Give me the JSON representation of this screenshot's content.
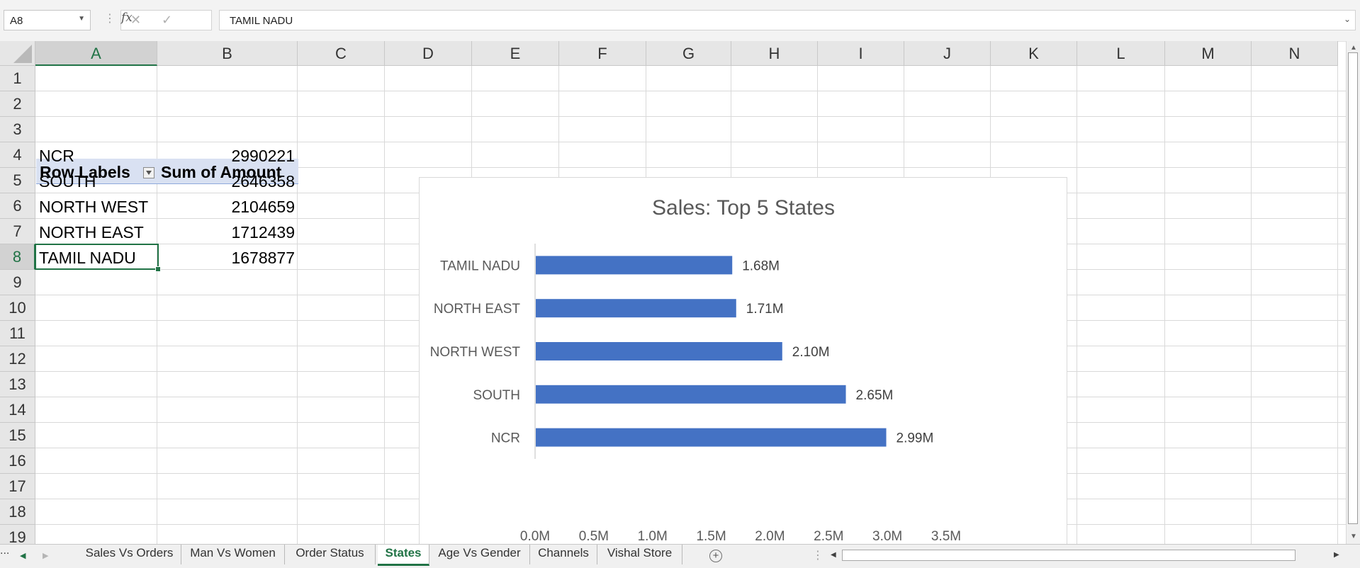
{
  "formula_bar": {
    "name_box": "A8",
    "cancel_icon": "close-icon",
    "enter_icon": "check-icon",
    "fx_label": "fx",
    "formula": "TAMIL NADU"
  },
  "grid": {
    "columns": [
      "A",
      "B",
      "C",
      "D",
      "E",
      "F",
      "G",
      "H",
      "I",
      "J",
      "K",
      "L",
      "M",
      "N"
    ],
    "selected_column": "A",
    "rows": [
      "1",
      "2",
      "3",
      "4",
      "5",
      "6",
      "7",
      "8",
      "9",
      "10",
      "11",
      "12",
      "13",
      "14",
      "15",
      "16",
      "17",
      "18",
      "19"
    ],
    "selected_row": "8"
  },
  "pivot": {
    "header_label": "Row Labels",
    "header_value": "Sum of Amount",
    "rows": [
      {
        "label": "NCR",
        "value": "2990221"
      },
      {
        "label": "SOUTH",
        "value": "2646358"
      },
      {
        "label": "NORTH WEST",
        "value": "2104659"
      },
      {
        "label": "NORTH EAST",
        "value": "1712439"
      },
      {
        "label": "TAMIL NADU",
        "value": "1678877"
      }
    ]
  },
  "chart_data": {
    "type": "bar",
    "orientation": "horizontal",
    "title": "Sales: Top 5 States",
    "categories": [
      "TAMIL NADU",
      "NORTH EAST",
      "NORTH WEST",
      "SOUTH",
      "NCR"
    ],
    "values": [
      1678877,
      1712439,
      2104659,
      2646358,
      2990221
    ],
    "data_labels": [
      "1.68M",
      "1.71M",
      "2.10M",
      "2.65M",
      "2.99M"
    ],
    "xlim": [
      0,
      3500000
    ],
    "x_ticks": [
      "0.0M",
      "0.5M",
      "1.0M",
      "1.5M",
      "2.0M",
      "2.5M",
      "3.0M",
      "3.5M"
    ],
    "bar_color": "#4472c4",
    "grid": false,
    "legend": "none"
  },
  "sheet_tabs": {
    "more": "...",
    "tabs": [
      "Sales Vs Orders",
      "Man Vs Women",
      "Order Status",
      "States",
      "Age Vs Gender",
      "Channels",
      "Vishal Store"
    ],
    "active": "States",
    "add_icon": "plus-icon"
  },
  "colors": {
    "accent": "#217346",
    "pivot_header": "#d9e1f2"
  }
}
